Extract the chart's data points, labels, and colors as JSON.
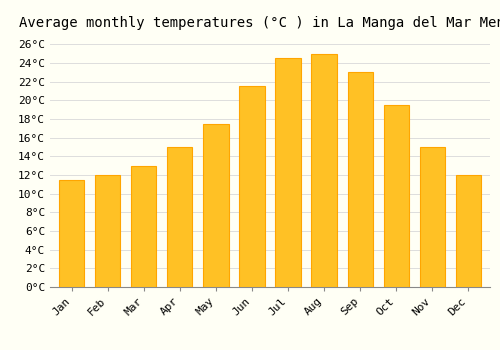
{
  "title": "Average monthly temperatures (°C ) in La Manga del Mar Menor",
  "months": [
    "Jan",
    "Feb",
    "Mar",
    "Apr",
    "May",
    "Jun",
    "Jul",
    "Aug",
    "Sep",
    "Oct",
    "Nov",
    "Dec"
  ],
  "temperatures": [
    11.5,
    12.0,
    13.0,
    15.0,
    17.5,
    21.5,
    24.5,
    25.0,
    23.0,
    19.5,
    15.0,
    12.0
  ],
  "bar_color": "#FFC125",
  "bar_edge_color": "#FFA500",
  "background_color": "#FFFFF5",
  "grid_color": "#DDDDDD",
  "title_fontsize": 10,
  "tick_fontsize": 8,
  "ylim": [
    0,
    27
  ],
  "yticks": [
    0,
    2,
    4,
    6,
    8,
    10,
    12,
    14,
    16,
    18,
    20,
    22,
    24,
    26
  ]
}
